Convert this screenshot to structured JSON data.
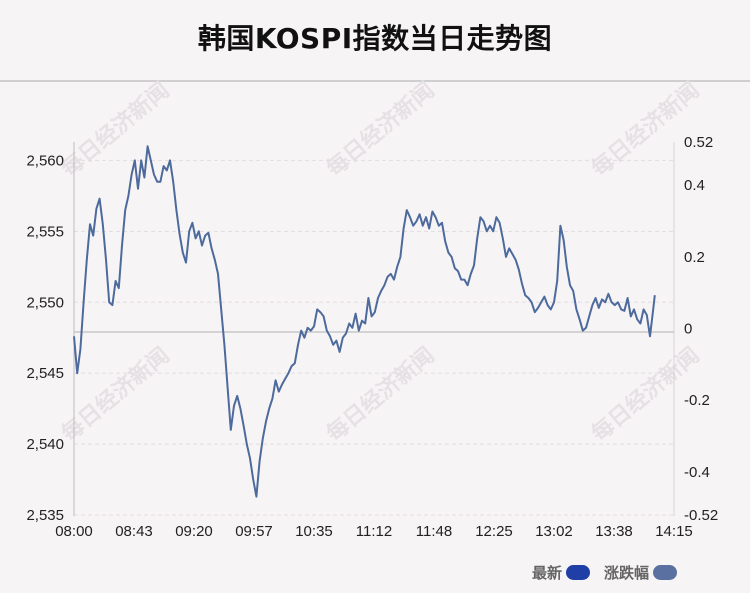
{
  "title": "韩国KOSPI指数当日走势图",
  "watermark_text": "每日经济新闻",
  "legend": [
    {
      "label": "最新",
      "color": "#1f3fa6"
    },
    {
      "label": "涨跌幅",
      "color": "#5a70a0"
    }
  ],
  "colors": {
    "line": "#4d6a9c",
    "grid": "#e2dde0",
    "baseline": "#c8c8c8"
  },
  "chart_data": {
    "type": "line",
    "x_tick_labels": [
      "08:00",
      "08:43",
      "09:20",
      "09:57",
      "10:35",
      "11:12",
      "11:48",
      "12:25",
      "13:02",
      "13:38",
      "14:15"
    ],
    "y_left_ticks": [
      "2,535",
      "2,540",
      "2,545",
      "2,550",
      "2,555",
      "2,560"
    ],
    "y_left_values": [
      2535,
      2540,
      2545,
      2550,
      2555,
      2560
    ],
    "y_right_ticks": [
      "-0.52",
      "-0.4",
      "-0.2",
      "0",
      "0.2",
      "0.4",
      "0.52"
    ],
    "y_right_values": [
      -0.52,
      -0.4,
      -0.2,
      0,
      0.2,
      0.4,
      0.52
    ],
    "ylim": [
      2535,
      2561.3
    ],
    "y2lim": [
      -0.52,
      0.52
    ],
    "baseline": 2547.9,
    "x_range_minutes": [
      0,
      375
    ],
    "series": [
      {
        "values": [
          [
            0,
            2547.6
          ],
          [
            2,
            2545.0
          ],
          [
            4,
            2546.7
          ],
          [
            6,
            2550.0
          ],
          [
            8,
            2553.0
          ],
          [
            10,
            2555.5
          ],
          [
            12,
            2554.7
          ],
          [
            14,
            2556.6
          ],
          [
            16,
            2557.3
          ],
          [
            18,
            2555.5
          ],
          [
            20,
            2553.0
          ],
          [
            22,
            2550.0
          ],
          [
            24,
            2549.8
          ],
          [
            26,
            2551.5
          ],
          [
            28,
            2551.0
          ],
          [
            30,
            2554.0
          ],
          [
            32,
            2556.5
          ],
          [
            34,
            2557.5
          ],
          [
            36,
            2559.0
          ],
          [
            38,
            2560.0
          ],
          [
            40,
            2558.0
          ],
          [
            42,
            2560.0
          ],
          [
            44,
            2558.8
          ],
          [
            46,
            2561.0
          ],
          [
            48,
            2560.0
          ],
          [
            50,
            2559.0
          ],
          [
            52,
            2558.5
          ],
          [
            54,
            2558.5
          ],
          [
            56,
            2559.6
          ],
          [
            58,
            2559.3
          ],
          [
            60,
            2560.0
          ],
          [
            62,
            2558.5
          ],
          [
            64,
            2556.5
          ],
          [
            66,
            2554.8
          ],
          [
            68,
            2553.5
          ],
          [
            70,
            2552.8
          ],
          [
            72,
            2555.0
          ],
          [
            74,
            2555.6
          ],
          [
            76,
            2554.5
          ],
          [
            78,
            2555.0
          ],
          [
            80,
            2554.0
          ],
          [
            82,
            2554.7
          ],
          [
            84,
            2554.9
          ],
          [
            86,
            2553.8
          ],
          [
            88,
            2553.0
          ],
          [
            90,
            2552.0
          ],
          [
            92,
            2549.5
          ],
          [
            94,
            2547.0
          ],
          [
            96,
            2544.0
          ],
          [
            98,
            2541.0
          ],
          [
            100,
            2542.7
          ],
          [
            102,
            2543.4
          ],
          [
            104,
            2542.5
          ],
          [
            106,
            2541.3
          ],
          [
            108,
            2540.0
          ],
          [
            110,
            2539.0
          ],
          [
            112,
            2537.5
          ],
          [
            114,
            2536.3
          ],
          [
            116,
            2538.8
          ],
          [
            118,
            2540.4
          ],
          [
            120,
            2541.6
          ],
          [
            122,
            2542.5
          ],
          [
            124,
            2543.2
          ],
          [
            126,
            2544.5
          ],
          [
            128,
            2543.7
          ],
          [
            130,
            2544.2
          ],
          [
            132,
            2544.6
          ],
          [
            134,
            2545.0
          ],
          [
            136,
            2545.5
          ],
          [
            138,
            2545.7
          ],
          [
            140,
            2547.0
          ],
          [
            142,
            2548.0
          ],
          [
            144,
            2547.5
          ],
          [
            146,
            2548.2
          ],
          [
            148,
            2548.0
          ],
          [
            150,
            2548.3
          ],
          [
            152,
            2549.5
          ],
          [
            154,
            2549.3
          ],
          [
            156,
            2549.0
          ],
          [
            158,
            2548.0
          ],
          [
            160,
            2547.6
          ],
          [
            162,
            2547.0
          ],
          [
            164,
            2547.3
          ],
          [
            166,
            2546.5
          ],
          [
            168,
            2547.5
          ],
          [
            170,
            2547.8
          ],
          [
            172,
            2548.5
          ],
          [
            174,
            2548.2
          ],
          [
            176,
            2549.2
          ],
          [
            178,
            2548.0
          ],
          [
            180,
            2548.7
          ],
          [
            182,
            2548.5
          ],
          [
            184,
            2550.3
          ],
          [
            186,
            2549.0
          ],
          [
            188,
            2549.3
          ],
          [
            190,
            2550.3
          ],
          [
            192,
            2550.8
          ],
          [
            194,
            2551.2
          ],
          [
            196,
            2551.8
          ],
          [
            198,
            2552.0
          ],
          [
            200,
            2551.6
          ],
          [
            202,
            2552.5
          ],
          [
            204,
            2553.2
          ],
          [
            206,
            2555.2
          ],
          [
            208,
            2556.5
          ],
          [
            210,
            2556.0
          ],
          [
            212,
            2555.4
          ],
          [
            214,
            2555.7
          ],
          [
            216,
            2556.2
          ],
          [
            218,
            2555.4
          ],
          [
            220,
            2556.0
          ],
          [
            222,
            2555.2
          ],
          [
            224,
            2556.4
          ],
          [
            226,
            2556.0
          ],
          [
            228,
            2555.4
          ],
          [
            230,
            2555.6
          ],
          [
            232,
            2554.3
          ],
          [
            234,
            2553.5
          ],
          [
            236,
            2553.2
          ],
          [
            238,
            2552.4
          ],
          [
            240,
            2552.2
          ],
          [
            242,
            2551.6
          ],
          [
            244,
            2551.6
          ],
          [
            246,
            2551.2
          ],
          [
            248,
            2552.0
          ],
          [
            250,
            2552.6
          ],
          [
            252,
            2554.5
          ],
          [
            254,
            2556.0
          ],
          [
            256,
            2555.7
          ],
          [
            258,
            2555.0
          ],
          [
            260,
            2555.4
          ],
          [
            262,
            2555.0
          ],
          [
            264,
            2556.0
          ],
          [
            266,
            2555.6
          ],
          [
            268,
            2554.5
          ],
          [
            270,
            2553.2
          ],
          [
            272,
            2553.8
          ],
          [
            274,
            2553.4
          ],
          [
            276,
            2553.0
          ],
          [
            278,
            2552.3
          ],
          [
            280,
            2551.3
          ],
          [
            282,
            2550.5
          ],
          [
            284,
            2550.3
          ],
          [
            286,
            2550.0
          ],
          [
            288,
            2549.3
          ],
          [
            290,
            2549.6
          ],
          [
            292,
            2550.0
          ],
          [
            294,
            2550.4
          ],
          [
            296,
            2549.8
          ],
          [
            298,
            2549.5
          ],
          [
            300,
            2550.0
          ],
          [
            302,
            2551.5
          ],
          [
            304,
            2555.4
          ],
          [
            306,
            2554.4
          ],
          [
            308,
            2552.5
          ],
          [
            310,
            2551.2
          ],
          [
            312,
            2550.8
          ],
          [
            314,
            2549.5
          ],
          [
            316,
            2548.8
          ],
          [
            318,
            2548.0
          ],
          [
            320,
            2548.2
          ],
          [
            322,
            2549.0
          ],
          [
            324,
            2549.8
          ],
          [
            326,
            2550.3
          ],
          [
            328,
            2549.6
          ],
          [
            330,
            2550.2
          ],
          [
            332,
            2550.0
          ],
          [
            334,
            2550.6
          ],
          [
            336,
            2550.0
          ],
          [
            338,
            2549.8
          ],
          [
            340,
            2550.0
          ],
          [
            342,
            2549.5
          ],
          [
            344,
            2549.4
          ],
          [
            346,
            2550.3
          ],
          [
            348,
            2549.0
          ],
          [
            350,
            2549.5
          ],
          [
            352,
            2548.8
          ],
          [
            354,
            2548.5
          ],
          [
            356,
            2549.5
          ],
          [
            358,
            2549.1
          ],
          [
            360,
            2547.6
          ],
          [
            362,
            2549.5
          ],
          [
            363,
            2550.5
          ]
        ]
      }
    ]
  }
}
